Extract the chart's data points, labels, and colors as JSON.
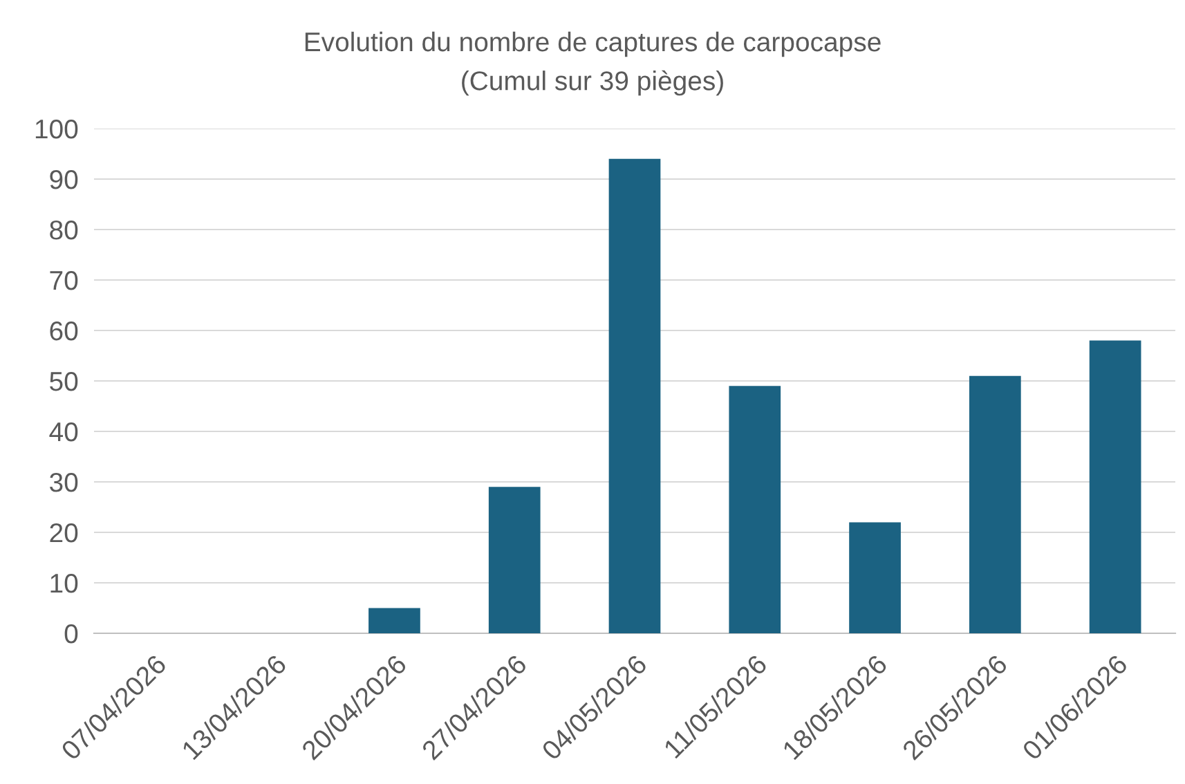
{
  "chart_data": {
    "type": "bar",
    "title": "Evolution du nombre de captures de carpocapse",
    "subtitle": "(Cumul sur 39 pièges)",
    "categories": [
      "07/04/2026",
      "13/04/2026",
      "20/04/2026",
      "27/04/2026",
      "04/05/2026",
      "11/05/2026",
      "18/05/2026",
      "26/05/2026",
      "01/06/2026"
    ],
    "values": [
      0,
      0,
      5,
      29,
      94,
      49,
      22,
      51,
      58
    ],
    "color": "#1b6282",
    "ylim": [
      0,
      100
    ],
    "yticks": [
      0,
      10,
      20,
      30,
      40,
      50,
      60,
      70,
      80,
      90,
      100
    ],
    "grid": "y",
    "legend": false
  }
}
